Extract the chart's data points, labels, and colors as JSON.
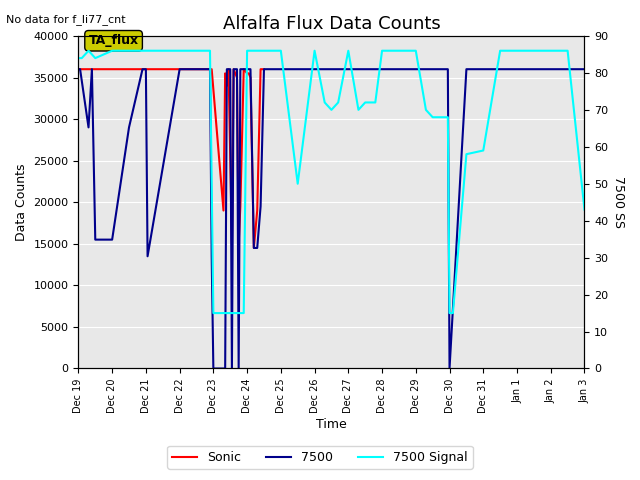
{
  "title": "Alfalfa Flux Data Counts",
  "subtitle": "No data for f_li77_cnt",
  "xlabel": "Time",
  "ylabel_left": "Data Counts",
  "ylabel_right": "7500 SS",
  "ylim_left": [
    0,
    40000
  ],
  "ylim_right": [
    0,
    90
  ],
  "bg_color": "#e8e8e8",
  "legend_entries": [
    "Sonic",
    "7500",
    "7500 Signal"
  ],
  "legend_colors": [
    "red",
    "darkblue",
    "cyan"
  ],
  "annotation_text": "TA_flux",
  "annotation_color": "#cccc00",
  "sonic_color": "red",
  "sonic_7500_color": "#00008b",
  "signal_color": "cyan",
  "sonic_data": {
    "x": [
      19.0,
      19.05,
      22.9,
      22.95,
      23.3,
      23.35,
      23.4,
      23.45,
      23.55,
      23.6,
      23.7,
      23.75,
      23.8,
      23.9,
      24.0,
      24.05,
      24.1,
      24.2,
      24.3,
      24.4,
      24.5
    ],
    "y": [
      36000,
      36000,
      36000,
      36000,
      19000,
      35500,
      34000,
      36000,
      15000,
      36000,
      35000,
      15000,
      19500,
      36000,
      35500,
      35500,
      35000,
      14500,
      19000,
      36000,
      36000
    ]
  },
  "sonic_7500_data": {
    "x": [
      19.0,
      19.05,
      19.3,
      19.4,
      19.5,
      20.0,
      20.5,
      20.9,
      21.0,
      21.05,
      22.0,
      22.5,
      22.9,
      22.95,
      23.0,
      23.05,
      23.3,
      23.35,
      23.4,
      23.45,
      23.5,
      23.55,
      23.6,
      23.7,
      23.75,
      23.8,
      23.85,
      23.9,
      24.0,
      24.05,
      24.1,
      24.2,
      24.3,
      24.4,
      24.5,
      25.0,
      25.5,
      26.0,
      26.5,
      27.0,
      27.5,
      28.0,
      28.5,
      29.0,
      29.5,
      29.9,
      29.95,
      30.0,
      30.5,
      31.0,
      32.0,
      32.5,
      33.0,
      34.0
    ],
    "y": [
      36000,
      36000,
      29000,
      36000,
      15500,
      15500,
      29000,
      36000,
      36000,
      13500,
      36000,
      36000,
      36000,
      13500,
      0,
      0,
      0,
      0,
      36000,
      36000,
      36000,
      0,
      36000,
      36000,
      0,
      36000,
      36000,
      36000,
      36000,
      36000,
      36000,
      14500,
      14500,
      19500,
      36000,
      36000,
      36000,
      36000,
      36000,
      36000,
      36000,
      36000,
      36000,
      36000,
      36000,
      36000,
      36000,
      0,
      36000,
      36000,
      36000,
      36000,
      36000,
      36000
    ]
  },
  "signal_data": {
    "x": [
      19.0,
      19.05,
      19.1,
      19.3,
      19.5,
      20.0,
      20.5,
      21.0,
      21.5,
      22.0,
      22.5,
      22.9,
      23.0,
      23.05,
      23.1,
      23.2,
      23.3,
      23.4,
      23.5,
      23.55,
      23.6,
      23.65,
      23.7,
      23.75,
      23.8,
      23.9,
      24.0,
      24.1,
      24.5,
      25.0,
      25.5,
      26.0,
      26.3,
      26.5,
      26.7,
      27.0,
      27.3,
      27.5,
      27.8,
      28.0,
      28.5,
      29.0,
      29.3,
      29.5,
      29.9,
      29.95,
      30.0,
      30.1,
      30.5,
      31.0,
      31.5,
      32.0,
      32.5,
      33.0,
      33.5,
      34.0
    ],
    "y": [
      84,
      84,
      84,
      86,
      84,
      86,
      86,
      86,
      86,
      86,
      86,
      86,
      15,
      15,
      15,
      15,
      15,
      15,
      15,
      15,
      15,
      15,
      15,
      15,
      15,
      15,
      86,
      86,
      86,
      86,
      50,
      86,
      72,
      70,
      72,
      86,
      70,
      72,
      72,
      86,
      86,
      86,
      70,
      68,
      68,
      68,
      15,
      15,
      58,
      59,
      86,
      86,
      86,
      86,
      86,
      43
    ]
  },
  "xaxis_ticks": [
    "Dec 19",
    "Dec 20",
    "Dec 21",
    "Dec 22",
    "Dec 23",
    "Dec 24",
    "Dec 25",
    "Dec 26",
    "Dec 27",
    "Dec 28",
    "Dec 29",
    "Dec 30",
    "Dec 31",
    "Jan 1",
    "Jan 2",
    "Jan 3"
  ],
  "xaxis_tick_values": [
    19,
    20,
    21,
    22,
    23,
    24,
    25,
    26,
    27,
    28,
    29,
    30,
    31,
    32,
    33,
    34
  ]
}
